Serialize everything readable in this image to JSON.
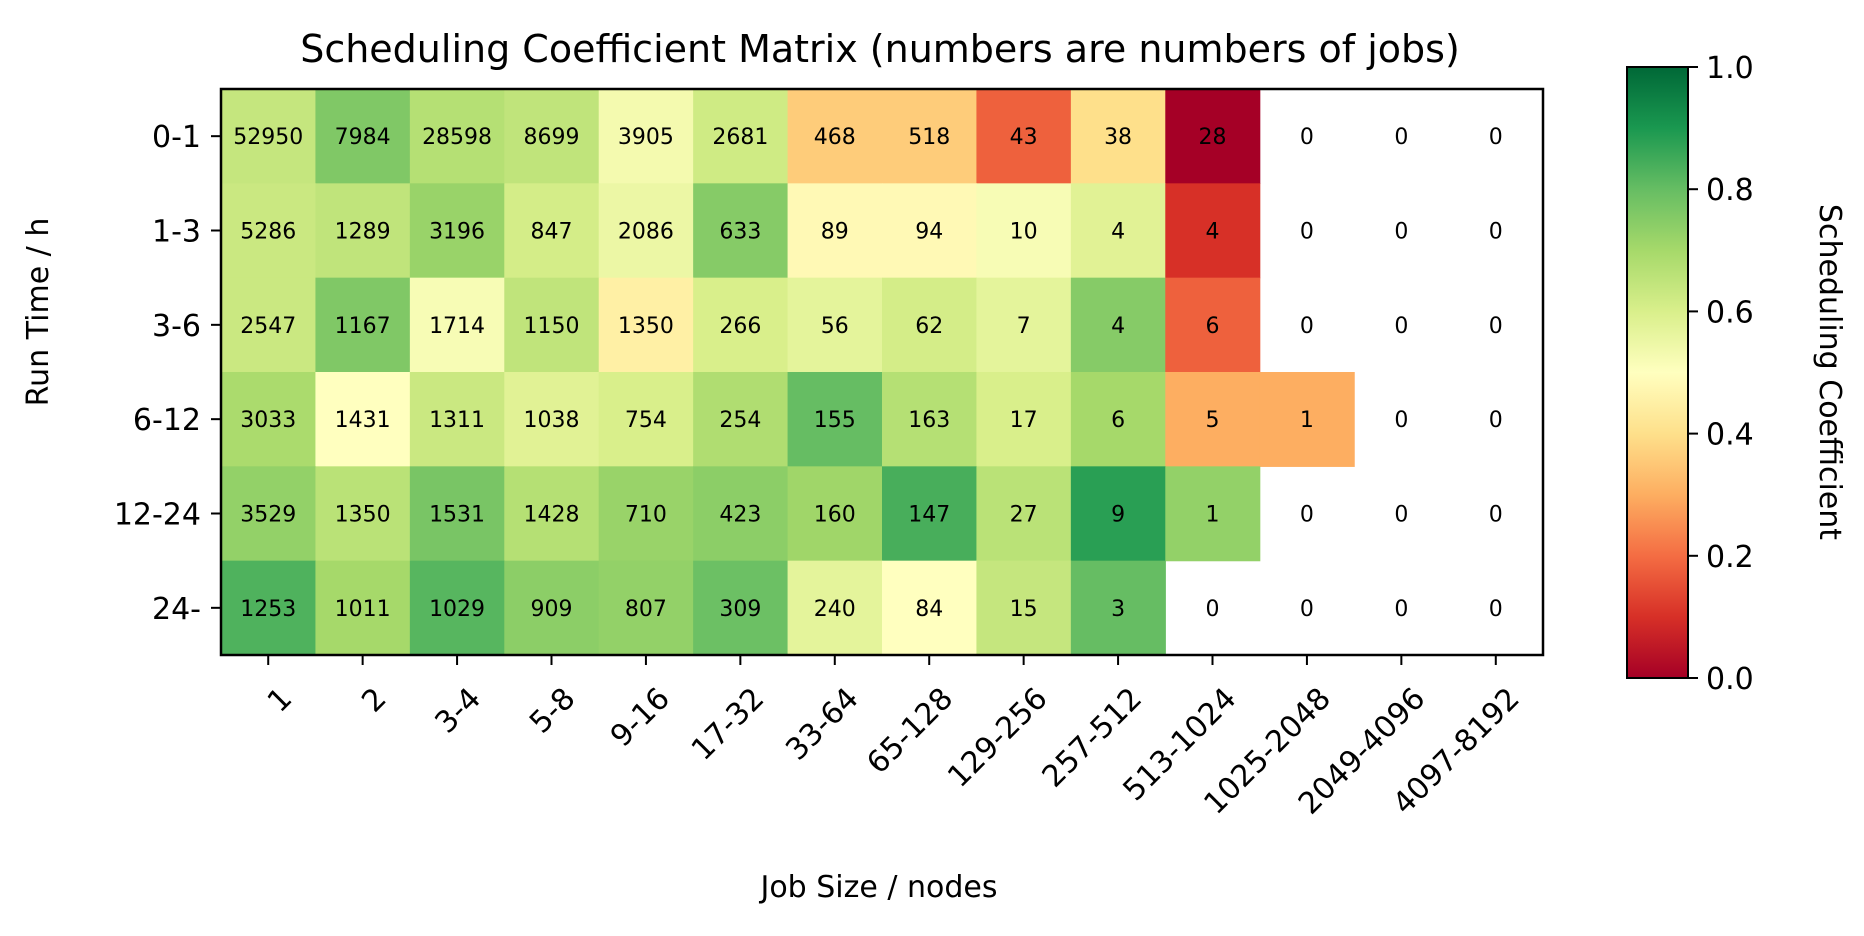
{
  "chart_data": {
    "type": "heatmap",
    "title": "Scheduling Coefficient Matrix (numbers are numbers of jobs)",
    "xlabel": "Job Size / nodes",
    "ylabel": "Run Time / h",
    "x_categories": [
      "1",
      "2",
      "3-4",
      "5-8",
      "9-16",
      "17-32",
      "33-64",
      "65-128",
      "129-256",
      "257-512",
      "513-1024",
      "1025-2048",
      "2049-4096",
      "4097-8192"
    ],
    "y_categories": [
      "0-1",
      "1-3",
      "3-6",
      "6-12",
      "12-24",
      "24-"
    ],
    "counts": [
      [
        52950,
        7984,
        28598,
        8699,
        3905,
        2681,
        468,
        518,
        43,
        38,
        28,
        0,
        0,
        0
      ],
      [
        5286,
        1289,
        3196,
        847,
        2086,
        633,
        89,
        94,
        10,
        4,
        4,
        0,
        0,
        0
      ],
      [
        2547,
        1167,
        1714,
        1150,
        1350,
        266,
        56,
        62,
        7,
        4,
        6,
        0,
        0,
        0
      ],
      [
        3033,
        1431,
        1311,
        1038,
        754,
        254,
        155,
        163,
        17,
        6,
        5,
        1,
        0,
        0
      ],
      [
        3529,
        1350,
        1531,
        1428,
        710,
        423,
        160,
        147,
        27,
        9,
        1,
        0,
        0,
        0
      ],
      [
        1253,
        1011,
        1029,
        909,
        807,
        309,
        240,
        84,
        15,
        3,
        0,
        0,
        0,
        0
      ]
    ],
    "coefficients": [
      [
        0.64,
        0.76,
        0.67,
        0.65,
        0.53,
        0.62,
        0.36,
        0.36,
        0.18,
        0.4,
        0.0,
        null,
        null,
        null
      ],
      [
        0.63,
        0.65,
        0.72,
        0.61,
        0.55,
        0.75,
        0.48,
        0.48,
        0.52,
        0.58,
        0.1,
        null,
        null,
        null
      ],
      [
        0.63,
        0.76,
        0.52,
        0.65,
        0.45,
        0.6,
        0.57,
        0.61,
        0.57,
        0.75,
        0.18,
        null,
        null,
        null
      ],
      [
        0.69,
        0.5,
        0.63,
        0.58,
        0.6,
        0.68,
        0.8,
        0.67,
        0.6,
        0.7,
        0.3,
        0.3,
        null,
        null
      ],
      [
        0.73,
        0.66,
        0.77,
        0.67,
        0.72,
        0.74,
        0.71,
        0.84,
        0.66,
        0.88,
        0.73,
        null,
        null,
        null
      ],
      [
        0.83,
        0.7,
        0.82,
        0.74,
        0.73,
        0.79,
        0.57,
        0.5,
        0.64,
        0.8,
        null,
        null,
        null,
        null
      ]
    ],
    "colorbar": {
      "label": "Scheduling Coefficient",
      "colormap": "RdYlGn",
      "range": [
        0.0,
        1.0
      ],
      "ticks": [
        "0.0",
        "0.2",
        "0.4",
        "0.6",
        "0.8",
        "1.0"
      ]
    }
  }
}
